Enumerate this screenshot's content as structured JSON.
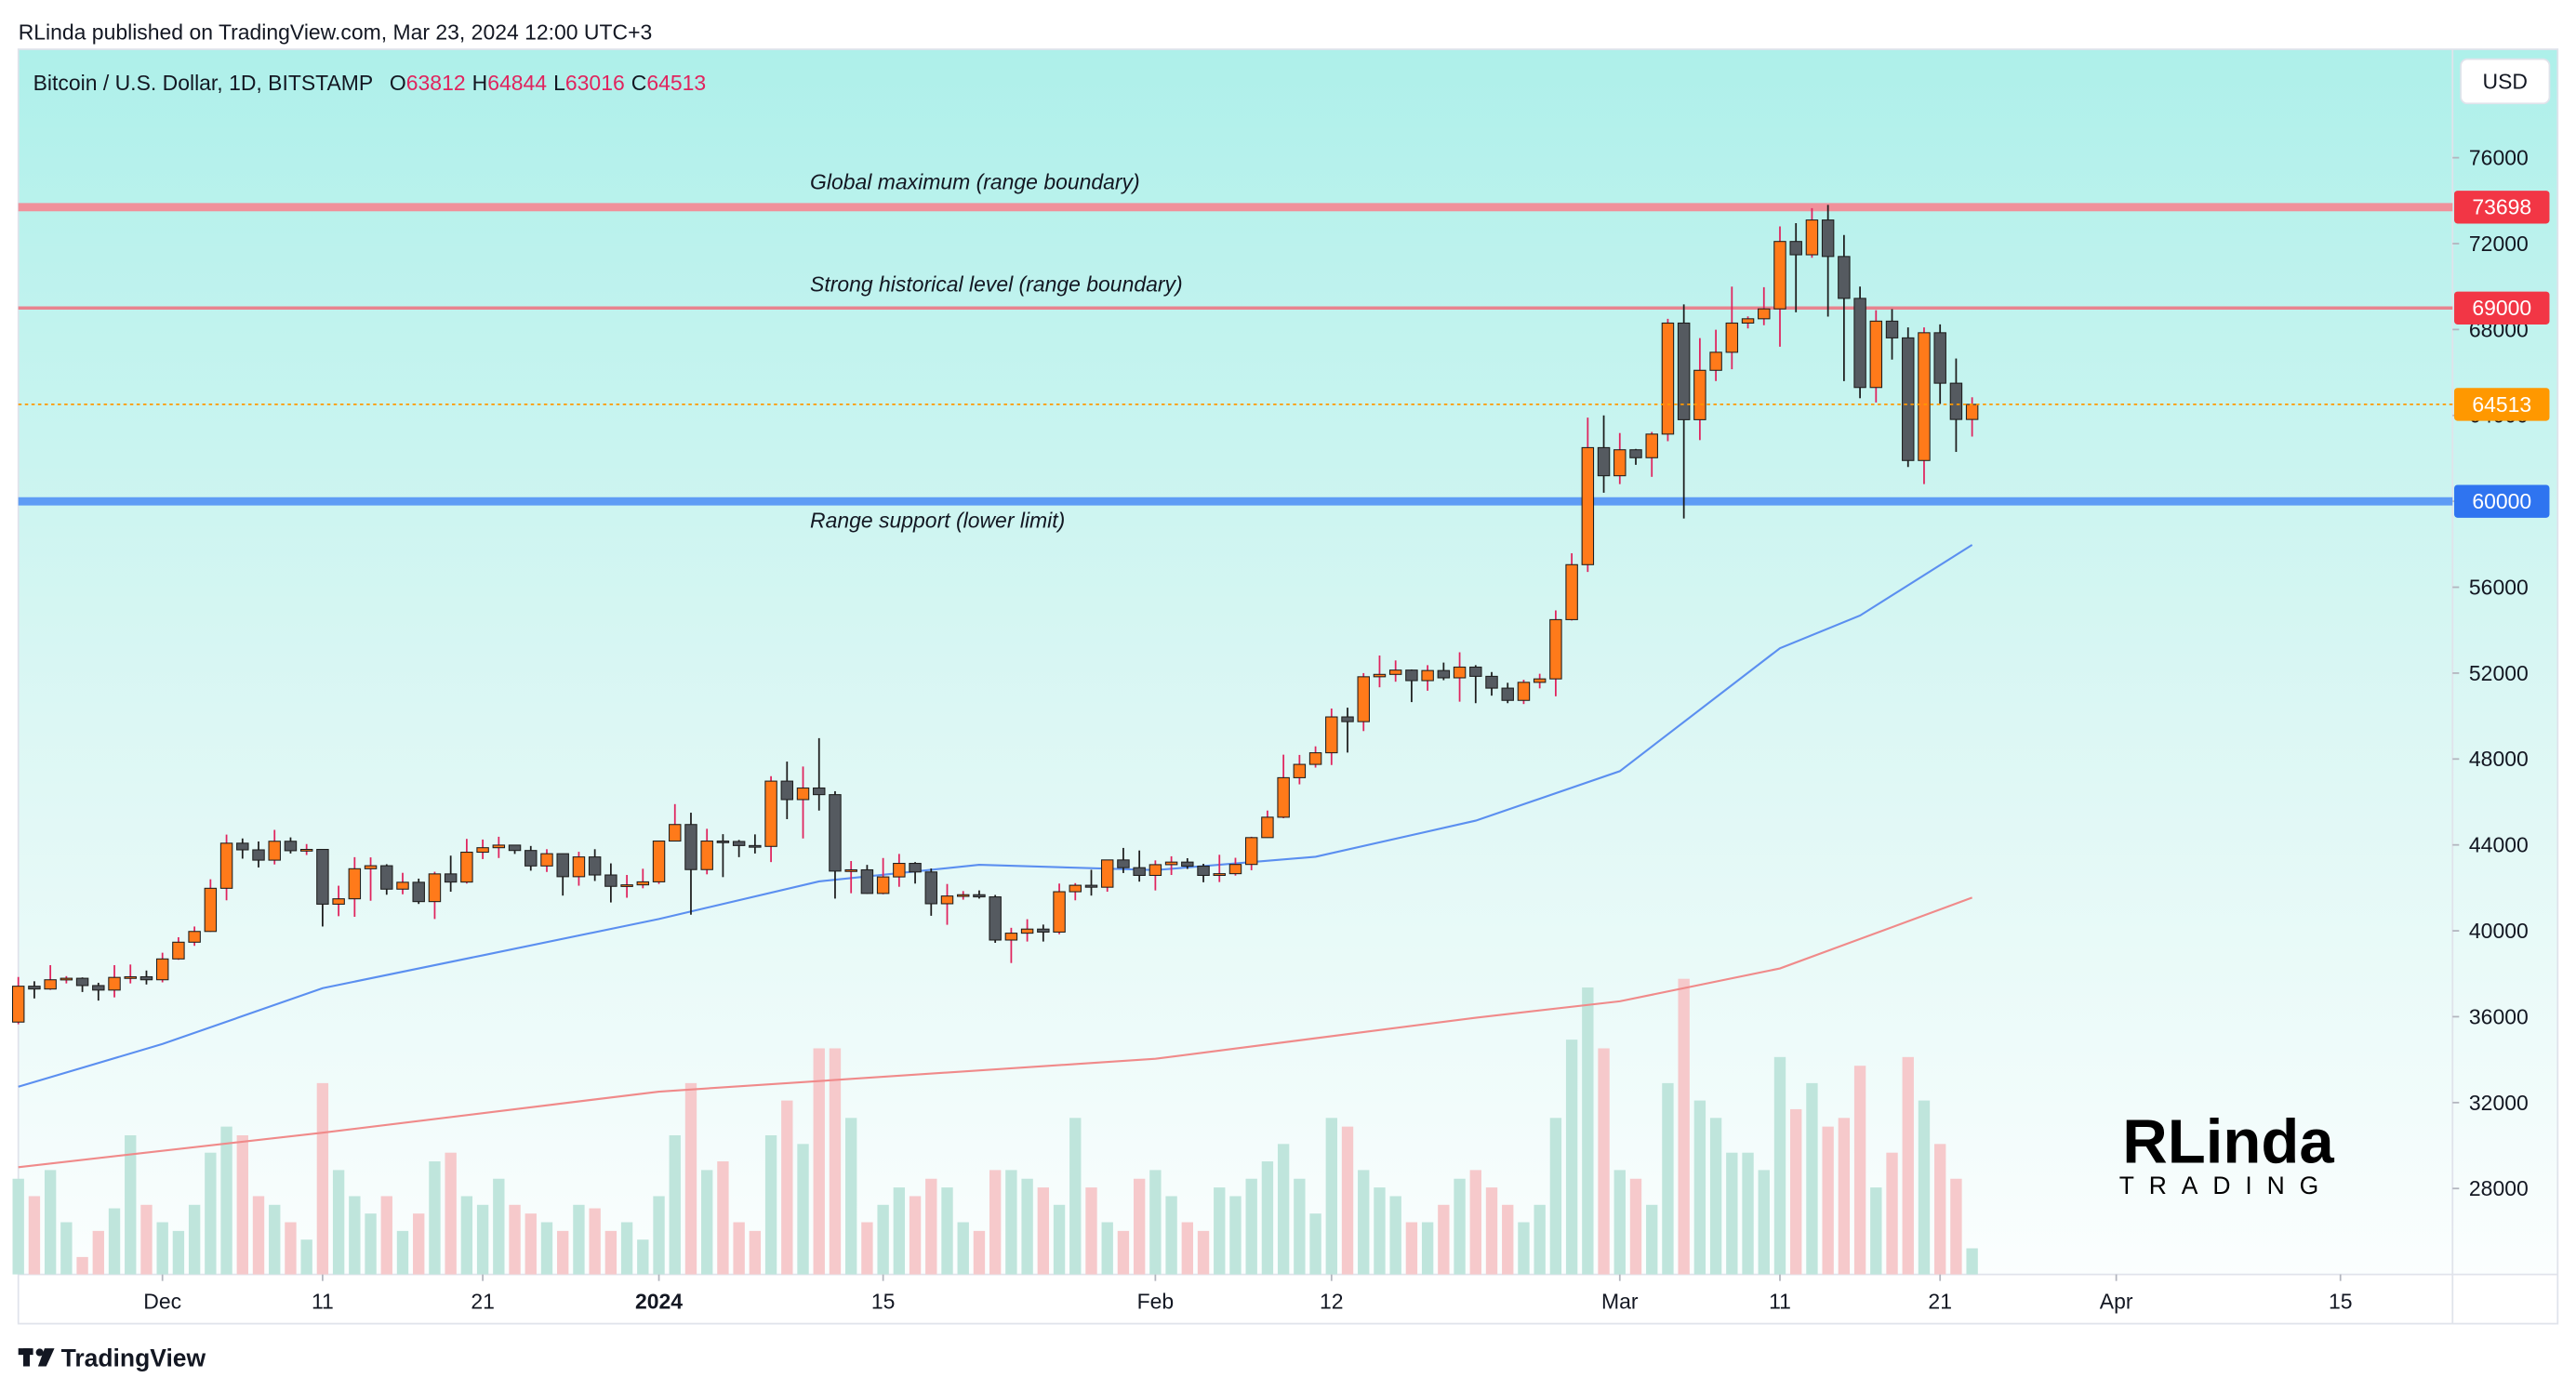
{
  "header": {
    "published": "RLinda published on TradingView.com, Mar 23, 2024 12:00 UTC+3"
  },
  "chart_data": {
    "type": "candlestick",
    "title": "Bitcoin / U.S. Dollar, 1D, BITSTAMP",
    "ohlc_labels": [
      "O",
      "H",
      "L",
      "C"
    ],
    "currency": "USD",
    "x": [
      "2023-11-22",
      "2023-11-23",
      "2023-11-24",
      "2023-11-25",
      "2023-11-26",
      "2023-11-27",
      "2023-11-28",
      "2023-11-29",
      "2023-11-30",
      "2023-12-01",
      "2023-12-02",
      "2023-12-03",
      "2023-12-04",
      "2023-12-05",
      "2023-12-06",
      "2023-12-07",
      "2023-12-08",
      "2023-12-09",
      "2023-12-10",
      "2023-12-11",
      "2023-12-12",
      "2023-12-13",
      "2023-12-14",
      "2023-12-15",
      "2023-12-16",
      "2023-12-17",
      "2023-12-18",
      "2023-12-19",
      "2023-12-20",
      "2023-12-21",
      "2023-12-22",
      "2023-12-23",
      "2023-12-24",
      "2023-12-25",
      "2023-12-26",
      "2023-12-27",
      "2023-12-28",
      "2023-12-29",
      "2023-12-30",
      "2023-12-31",
      "2024-01-01",
      "2024-01-02",
      "2024-01-03",
      "2024-01-04",
      "2024-01-05",
      "2024-01-06",
      "2024-01-07",
      "2024-01-08",
      "2024-01-09",
      "2024-01-10",
      "2024-01-11",
      "2024-01-12",
      "2024-01-13",
      "2024-01-14",
      "2024-01-15",
      "2024-01-16",
      "2024-01-17",
      "2024-01-18",
      "2024-01-19",
      "2024-01-20",
      "2024-01-21",
      "2024-01-22",
      "2024-01-23",
      "2024-01-24",
      "2024-01-25",
      "2024-01-26",
      "2024-01-27",
      "2024-01-28",
      "2024-01-29",
      "2024-01-30",
      "2024-01-31",
      "2024-02-01",
      "2024-02-02",
      "2024-02-03",
      "2024-02-04",
      "2024-02-05",
      "2024-02-06",
      "2024-02-07",
      "2024-02-08",
      "2024-02-09",
      "2024-02-10",
      "2024-02-11",
      "2024-02-12",
      "2024-02-13",
      "2024-02-14",
      "2024-02-15",
      "2024-02-16",
      "2024-02-17",
      "2024-02-18",
      "2024-02-19",
      "2024-02-20",
      "2024-02-21",
      "2024-02-22",
      "2024-02-23",
      "2024-02-24",
      "2024-02-25",
      "2024-02-26",
      "2024-02-27",
      "2024-02-28",
      "2024-02-29",
      "2024-03-01",
      "2024-03-02",
      "2024-03-03",
      "2024-03-04",
      "2024-03-05",
      "2024-03-06",
      "2024-03-07",
      "2024-03-08",
      "2024-03-09",
      "2024-03-10",
      "2024-03-11",
      "2024-03-12",
      "2024-03-13",
      "2024-03-14",
      "2024-03-15",
      "2024-03-16",
      "2024-03-17",
      "2024-03-18",
      "2024-03-19",
      "2024-03-20",
      "2024-03-21",
      "2024-03-22",
      "2024-03-23"
    ],
    "ohlc": [
      [
        35750,
        37850,
        35650,
        37420
      ],
      [
        37420,
        37650,
        36850,
        37290
      ],
      [
        37290,
        38400,
        37250,
        37720
      ],
      [
        37720,
        37890,
        37550,
        37790
      ],
      [
        37790,
        37830,
        37150,
        37450
      ],
      [
        37450,
        37580,
        36750,
        37240
      ],
      [
        37240,
        38400,
        36900,
        37830
      ],
      [
        37830,
        38430,
        37550,
        37860
      ],
      [
        37860,
        38150,
        37500,
        37720
      ],
      [
        37720,
        38980,
        37600,
        38690
      ],
      [
        38690,
        39700,
        38650,
        39470
      ],
      [
        39470,
        40200,
        39300,
        39970
      ],
      [
        39970,
        42400,
        39950,
        41980
      ],
      [
        41980,
        44480,
        41420,
        44080
      ],
      [
        44080,
        44300,
        43360,
        43770
      ],
      [
        43770,
        44160,
        42950,
        43290
      ],
      [
        43290,
        44700,
        43090,
        44170
      ],
      [
        44170,
        44350,
        43600,
        43730
      ],
      [
        43730,
        44040,
        43530,
        43790
      ],
      [
        43790,
        43790,
        40200,
        41240
      ],
      [
        41240,
        42100,
        40680,
        41490
      ],
      [
        41490,
        43430,
        40650,
        42890
      ],
      [
        42890,
        43420,
        41400,
        43030
      ],
      [
        43030,
        43100,
        41680,
        41940
      ],
      [
        41940,
        42700,
        41700,
        42260
      ],
      [
        42260,
        42430,
        41250,
        41360
      ],
      [
        41360,
        42750,
        40550,
        42650
      ],
      [
        42650,
        43500,
        41820,
        42270
      ],
      [
        42270,
        44280,
        42200,
        43660
      ],
      [
        43660,
        44250,
        43340,
        43870
      ],
      [
        43870,
        44380,
        43390,
        43990
      ],
      [
        43990,
        44000,
        43580,
        43740
      ],
      [
        43740,
        43950,
        42800,
        43020
      ],
      [
        43020,
        43800,
        42740,
        43590
      ],
      [
        43590,
        43600,
        41640,
        42520
      ],
      [
        42520,
        43680,
        42100,
        43440
      ],
      [
        43440,
        43800,
        42320,
        42600
      ],
      [
        42600,
        43140,
        41320,
        42070
      ],
      [
        42070,
        42600,
        41540,
        42140
      ],
      [
        42140,
        42890,
        41980,
        42280
      ],
      [
        42280,
        44200,
        42180,
        44180
      ],
      [
        44180,
        45900,
        44180,
        44950
      ],
      [
        44950,
        45500,
        40750,
        42850
      ],
      [
        42850,
        44750,
        42630,
        44180
      ],
      [
        44180,
        44500,
        42500,
        44160
      ],
      [
        44160,
        44230,
        43430,
        43970
      ],
      [
        43970,
        44490,
        43600,
        43930
      ],
      [
        43930,
        47200,
        43200,
        46970
      ],
      [
        46970,
        47880,
        45200,
        46110
      ],
      [
        46110,
        47650,
        44300,
        46650
      ],
      [
        46650,
        48970,
        45600,
        46340
      ],
      [
        46340,
        46500,
        41500,
        42780
      ],
      [
        42780,
        43250,
        41750,
        42840
      ],
      [
        42840,
        43070,
        41720,
        41740
      ],
      [
        41740,
        43390,
        41700,
        42510
      ],
      [
        42510,
        43580,
        42050,
        43140
      ],
      [
        43140,
        43200,
        42200,
        42740
      ],
      [
        42740,
        42900,
        40700,
        41260
      ],
      [
        41260,
        42180,
        40280,
        41620
      ],
      [
        41620,
        41850,
        41450,
        41680
      ],
      [
        41680,
        41880,
        41500,
        41580
      ],
      [
        41580,
        41670,
        39440,
        39570
      ],
      [
        39570,
        40140,
        38500,
        39890
      ],
      [
        39890,
        40540,
        39500,
        40080
      ],
      [
        40080,
        40290,
        39500,
        39940
      ],
      [
        39940,
        42200,
        39840,
        41820
      ],
      [
        41820,
        42220,
        41420,
        42120
      ],
      [
        42120,
        42840,
        41640,
        42030
      ],
      [
        42030,
        43300,
        41820,
        43300
      ],
      [
        43300,
        43860,
        42690,
        42940
      ],
      [
        42940,
        43740,
        42290,
        42580
      ],
      [
        42580,
        43280,
        41880,
        43080
      ],
      [
        43080,
        43470,
        42600,
        43200
      ],
      [
        43200,
        43380,
        42880,
        43010
      ],
      [
        43010,
        43120,
        42260,
        42580
      ],
      [
        42580,
        43540,
        42270,
        42660
      ],
      [
        42660,
        43400,
        42570,
        43090
      ],
      [
        43090,
        44380,
        42820,
        44340
      ],
      [
        44340,
        45600,
        44330,
        45290
      ],
      [
        45290,
        48200,
        45240,
        47130
      ],
      [
        47130,
        48190,
        46820,
        47750
      ],
      [
        47750,
        48590,
        47600,
        48290
      ],
      [
        48290,
        50350,
        47720,
        49960
      ],
      [
        49960,
        50390,
        48300,
        49740
      ],
      [
        49740,
        52000,
        49300,
        51830
      ],
      [
        51830,
        52820,
        51340,
        51940
      ],
      [
        51940,
        52590,
        51600,
        52140
      ],
      [
        52140,
        52170,
        50650,
        51650
      ],
      [
        51650,
        52370,
        51180,
        52120
      ],
      [
        52120,
        52490,
        51670,
        51780
      ],
      [
        51780,
        52970,
        50670,
        52280
      ],
      [
        52280,
        52370,
        50600,
        51850
      ],
      [
        51850,
        52050,
        50950,
        51300
      ],
      [
        51300,
        51550,
        50600,
        50730
      ],
      [
        50730,
        51690,
        50560,
        51570
      ],
      [
        51570,
        51970,
        51290,
        51730
      ],
      [
        51730,
        54920,
        50920,
        54490
      ],
      [
        54490,
        57580,
        54450,
        57050
      ],
      [
        57050,
        63900,
        56710,
        62500
      ],
      [
        62500,
        64000,
        60400,
        61190
      ],
      [
        61190,
        63180,
        60800,
        62400
      ],
      [
        62400,
        62440,
        61700,
        62030
      ],
      [
        62030,
        63230,
        61140,
        63130
      ],
      [
        63130,
        68500,
        62800,
        68300
      ],
      [
        68300,
        69170,
        59200,
        63800
      ],
      [
        63800,
        67600,
        62850,
        66100
      ],
      [
        66100,
        67990,
        65600,
        66940
      ],
      [
        66940,
        70000,
        66150,
        68300
      ],
      [
        68300,
        68610,
        68050,
        68500
      ],
      [
        68500,
        69970,
        68200,
        68960
      ],
      [
        68960,
        72800,
        67200,
        72100
      ],
      [
        72100,
        72950,
        68800,
        71480
      ],
      [
        71480,
        73650,
        71340,
        73100
      ],
      [
        73100,
        73800,
        68600,
        71400
      ],
      [
        71400,
        72400,
        65600,
        69450
      ],
      [
        69450,
        70000,
        64800,
        65300
      ],
      [
        65300,
        68900,
        64600,
        68390
      ],
      [
        68390,
        68950,
        66600,
        67610
      ],
      [
        67610,
        68100,
        61600,
        61900
      ],
      [
        61900,
        68100,
        60800,
        67850
      ],
      [
        67850,
        68240,
        64530,
        65500
      ],
      [
        65500,
        66650,
        62300,
        63812
      ],
      [
        63812,
        64844,
        63016,
        64513
      ]
    ],
    "volume": [
      55,
      45,
      60,
      30,
      10,
      25,
      38,
      80,
      40,
      30,
      25,
      40,
      70,
      85,
      80,
      45,
      40,
      30,
      20,
      110,
      60,
      45,
      35,
      45,
      25,
      35,
      65,
      70,
      45,
      40,
      55,
      40,
      35,
      30,
      25,
      40,
      38,
      25,
      30,
      20,
      45,
      80,
      110,
      60,
      65,
      30,
      25,
      80,
      100,
      75,
      130,
      130,
      90,
      30,
      40,
      50,
      45,
      55,
      50,
      30,
      25,
      60,
      60,
      55,
      50,
      40,
      90,
      50,
      30,
      25,
      55,
      60,
      45,
      30,
      25,
      50,
      45,
      55,
      65,
      75,
      55,
      35,
      90,
      85,
      60,
      50,
      45,
      30,
      30,
      40,
      55,
      60,
      50,
      40,
      30,
      40,
      90,
      135,
      165,
      130,
      60,
      55,
      40,
      110,
      170,
      100,
      90,
      70,
      70,
      60,
      125,
      95,
      110,
      85,
      90,
      120,
      50,
      70,
      125,
      100,
      75,
      55,
      15
    ],
    "up_color": "#ff7a1a",
    "up_wick_color": "#e0245e",
    "down_color": "#555a60",
    "down_wick_color": "#1e1e1e",
    "volume_up_color": "#bfe5dc",
    "volume_down_color": "#f6c9cb",
    "legend_value_color": "#e0245e",
    "ylim": [
      24000,
      81050
    ],
    "yticks": [
      28000,
      32000,
      36000,
      40000,
      44000,
      48000,
      52000,
      56000,
      60000,
      64000,
      68000,
      72000,
      76000
    ],
    "xlim": [
      "2023-11-22",
      "2024-04-22"
    ],
    "xticks": [
      {
        "value": "2023-12-01",
        "label": "Dec"
      },
      {
        "value": "2023-12-11",
        "label": "11"
      },
      {
        "value": "2023-12-21",
        "label": "21"
      },
      {
        "value": "2024-01-01",
        "label": "2024"
      },
      {
        "value": "2024-01-15",
        "label": "15"
      },
      {
        "value": "2024-02-01",
        "label": "Feb"
      },
      {
        "value": "2024-02-12",
        "label": "12"
      },
      {
        "value": "2024-03-01",
        "label": "Mar"
      },
      {
        "value": "2024-03-11",
        "label": "11"
      },
      {
        "value": "2024-03-21",
        "label": "21"
      },
      {
        "value": "2024-04-01",
        "label": "Apr"
      },
      {
        "value": "2024-04-15",
        "label": "15"
      }
    ],
    "moving_averages": [
      {
        "color": "#5b8ff0",
        "x": [
          "2023-11-22",
          "2023-12-01",
          "2023-12-11",
          "2023-12-21",
          "2024-01-01",
          "2024-01-11",
          "2024-01-21",
          "2024-02-01",
          "2024-02-11",
          "2024-02-21",
          "2024-03-01",
          "2024-03-11",
          "2024-03-16",
          "2024-03-23"
        ],
        "values": [
          32740,
          34730,
          37330,
          38860,
          40550,
          42300,
          43070,
          42830,
          43450,
          45130,
          47430,
          53160,
          54680,
          57970
        ]
      },
      {
        "color": "#f08a8a",
        "x": [
          "2023-11-22",
          "2023-12-11",
          "2024-01-01",
          "2024-02-01",
          "2024-02-21",
          "2024-03-01",
          "2024-03-11",
          "2024-03-23"
        ],
        "values": [
          28990,
          30600,
          32510,
          34040,
          35950,
          36720,
          38250,
          41540
        ]
      }
    ],
    "levels": [
      {
        "label": "Global maximum (range boundary)",
        "value": 73698,
        "color": "#f0919b",
        "box_color": "#f23645"
      },
      {
        "label": "Strong historical level (range boundary)",
        "value": 69000,
        "color": "#e8838e",
        "box_color": "#f23645"
      },
      {
        "label": "Range support (lower limit)",
        "value": 60000,
        "color": "#5e9cf5",
        "box_color": "#2f74f0"
      }
    ],
    "last_price_color": "#ff9800",
    "grid": false
  },
  "branding": {
    "logo_main": "RLinda",
    "logo_sub": "TRADING"
  },
  "footer": {
    "brand": "TradingView"
  }
}
